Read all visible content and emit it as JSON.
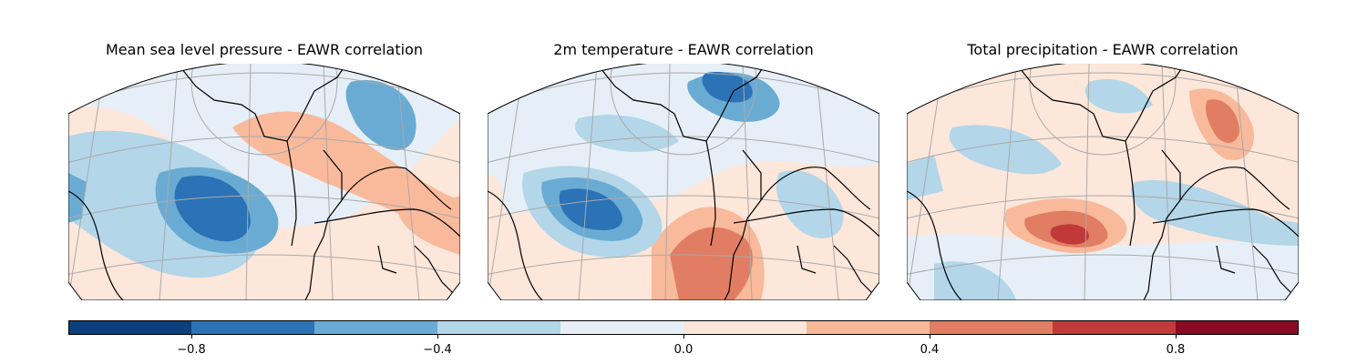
{
  "panels": [
    {
      "title": "Mean sea level pressure - EAWR correlation"
    },
    {
      "title": "2m temperature - EAWR correlation"
    },
    {
      "title": "Total precipitation - EAWR correlation"
    }
  ],
  "colorbar": {
    "range": [
      -1.0,
      1.0
    ],
    "levels": [
      -1.0,
      -0.8,
      -0.6,
      -0.4,
      -0.2,
      0.0,
      0.2,
      0.4,
      0.6,
      0.8,
      1.0
    ],
    "colors": [
      "#0c3f7d",
      "#2b72b6",
      "#6aabd3",
      "#b3d6e9",
      "#e6eff7",
      "#fde6da",
      "#f9b99b",
      "#e07d63",
      "#c2393a",
      "#8a0b23"
    ],
    "tick_labels": [
      "−0.8",
      "−0.4",
      "0.0",
      "0.4",
      "0.8"
    ],
    "tick_values": [
      -0.8,
      -0.4,
      0.0,
      0.4,
      0.8
    ]
  },
  "colors": {
    "coast": "#000000",
    "grid": "#aaaaaa"
  }
}
